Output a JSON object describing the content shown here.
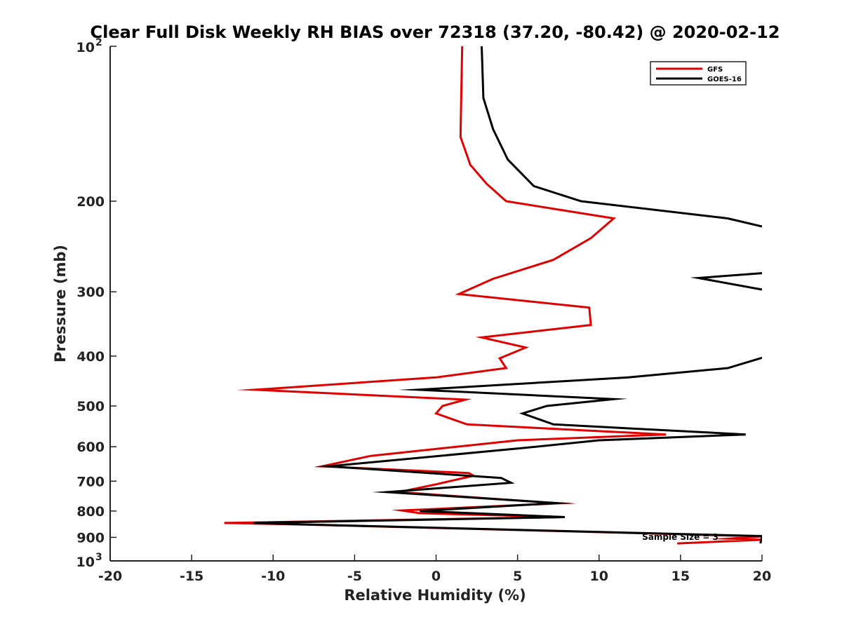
{
  "chart_data": {
    "type": "line",
    "title": "Clear Full Disk Weekly RH BIAS over 72318 (37.20, -80.42) @ 2020-02-12",
    "xlabel": "Relative Humidity (%)",
    "ylabel": "Pressure (mb)",
    "xlim": [
      -20,
      20
    ],
    "ylim": [
      100,
      1000
    ],
    "y_scale": "log",
    "y_reversed": true,
    "grid": false,
    "legend_position": "top-right",
    "x_ticks": [
      "-20",
      "-15",
      "-10",
      "-5",
      "0",
      "5",
      "10",
      "15",
      "20"
    ],
    "y_ticks": [
      {
        "value": 100,
        "base": "10",
        "exp": "2"
      },
      {
        "value": 200,
        "label": "200"
      },
      {
        "value": 300,
        "label": "300"
      },
      {
        "value": 400,
        "label": "400"
      },
      {
        "value": 500,
        "label": "500"
      },
      {
        "value": 600,
        "label": "600"
      },
      {
        "value": 700,
        "label": "700"
      },
      {
        "value": 800,
        "label": "800"
      },
      {
        "value": 900,
        "label": "900"
      },
      {
        "value": 1000,
        "base": "10",
        "exp": "3"
      }
    ],
    "annotation": "Sample Size = 3",
    "series": [
      {
        "name": "GFS",
        "color": "#e00000",
        "points": [
          [
            1.6,
            100
          ],
          [
            1.5,
            150
          ],
          [
            2.1,
            170
          ],
          [
            3.1,
            185
          ],
          [
            4.3,
            200
          ],
          [
            10.9,
            216
          ],
          [
            9.5,
            236
          ],
          [
            7.2,
            260
          ],
          [
            3.5,
            283
          ],
          [
            1.4,
            303
          ],
          [
            9.4,
            322
          ],
          [
            9.5,
            348
          ],
          [
            2.8,
            368
          ],
          [
            5.5,
            385
          ],
          [
            3.9,
            404
          ],
          [
            4.3,
            422
          ],
          [
            0,
            440
          ],
          [
            -11.1,
            465
          ],
          [
            1.8,
            486
          ],
          [
            0.4,
            500
          ],
          [
            0,
            517
          ],
          [
            1.9,
            543
          ],
          [
            14.1,
            568
          ],
          [
            5,
            583
          ],
          [
            -4,
            625
          ],
          [
            -7,
            655
          ],
          [
            2,
            675
          ],
          [
            2.3,
            683
          ],
          [
            0,
            710
          ],
          [
            -2.3,
            735
          ],
          [
            7.5,
            773
          ],
          [
            -2.1,
            798
          ],
          [
            -1,
            808
          ],
          [
            7.8,
            822
          ],
          [
            -13,
            844
          ],
          [
            -8,
            850
          ],
          [
            20,
            896
          ],
          [
            18,
            905
          ],
          [
            20,
            910
          ],
          [
            14.8,
            925
          ]
        ]
      },
      {
        "name": "GOES-16",
        "color": "#000000",
        "points": [
          [
            2.8,
            100
          ],
          [
            2.9,
            126
          ],
          [
            3.5,
            145
          ],
          [
            4.4,
            166
          ],
          [
            6,
            187
          ],
          [
            8.9,
            200
          ],
          [
            17.9,
            216
          ],
          [
            20,
            224
          ],
          [
            null,
            null
          ],
          [
            20,
            276
          ],
          [
            16.1,
            282
          ],
          [
            20,
            297
          ],
          [
            null,
            null
          ],
          [
            20,
            403
          ],
          [
            17.9,
            422
          ],
          [
            11.8,
            440
          ],
          [
            -1.1,
            465
          ],
          [
            10.9,
            485
          ],
          [
            6.8,
            500
          ],
          [
            5.3,
            517
          ],
          [
            7.2,
            543
          ],
          [
            19,
            568
          ],
          [
            10,
            583
          ],
          [
            5,
            605
          ],
          [
            -6.6,
            655
          ],
          [
            4,
            690
          ],
          [
            4.6,
            705
          ],
          [
            -3,
            735
          ],
          [
            7.4,
            772
          ],
          [
            -1,
            800
          ],
          [
            7.9,
            822
          ],
          [
            -11.2,
            844
          ],
          [
            -7.7,
            850
          ],
          [
            20,
            895
          ],
          [
            19.9,
            925
          ]
        ]
      }
    ]
  }
}
